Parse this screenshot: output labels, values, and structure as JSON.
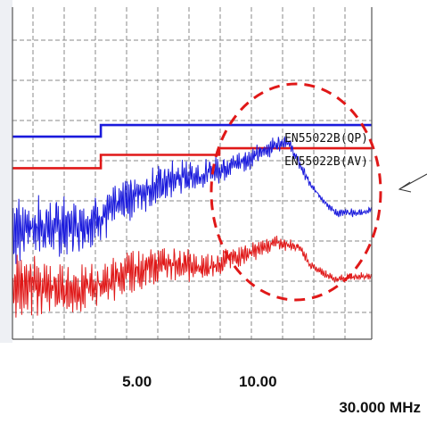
{
  "chart_data": {
    "type": "line",
    "x_scale": "linear",
    "xlim": [
      0.15,
      15.0
    ],
    "ylim": [
      0,
      100
    ],
    "x_ticks": [
      {
        "value": 5.0,
        "label": "5.00"
      },
      {
        "value": 10.0,
        "label": "10.00"
      }
    ],
    "unit_label": "30.000 MHz",
    "grid": true,
    "colors": {
      "qp": "#1a1adc",
      "av": "#e01818",
      "grid": "#8a8a8a",
      "frame": "#555555",
      "highlight": "#e01818"
    },
    "limits": [
      {
        "name": "EN55022B(QP)",
        "color": "#1a1adc",
        "points": [
          [
            0.15,
            61
          ],
          [
            3.8,
            61
          ],
          [
            3.8,
            64.5
          ],
          [
            15.0,
            64.5
          ]
        ]
      },
      {
        "name": "EN55022B(AV)",
        "color": "#e01818",
        "points": [
          [
            0.15,
            51.5
          ],
          [
            3.8,
            51.5
          ],
          [
            3.8,
            55.5
          ],
          [
            8.7,
            55.5
          ],
          [
            8.7,
            57.5
          ],
          [
            15.0,
            57.5
          ]
        ]
      }
    ],
    "series": [
      {
        "id": "qp-trace",
        "color": "#1a1adc",
        "x": [
          0.15,
          1,
          2,
          3,
          4,
          5,
          6,
          7,
          8,
          9,
          10,
          11,
          11.5,
          12.5,
          13.5,
          14.5,
          15.0
        ],
        "y": [
          33,
          34,
          33.5,
          34.5,
          37.5,
          43,
          46,
          48.5,
          49.5,
          52,
          54.5,
          58.5,
          60,
          46,
          38,
          38,
          39
        ]
      },
      {
        "id": "av-trace",
        "color": "#e01818",
        "x": [
          0.15,
          1,
          2,
          3,
          4,
          5,
          6,
          7,
          8,
          9,
          10,
          11,
          12,
          12.5,
          13.5,
          14.5,
          15.0
        ],
        "y": [
          17,
          16,
          15,
          15,
          17,
          20,
          22,
          23,
          21,
          24,
          26,
          29,
          28,
          22,
          18,
          19,
          19
        ]
      }
    ],
    "annotation": {
      "shape": "dashed-ellipse",
      "color": "#e01818",
      "pointer": "arrow"
    }
  }
}
